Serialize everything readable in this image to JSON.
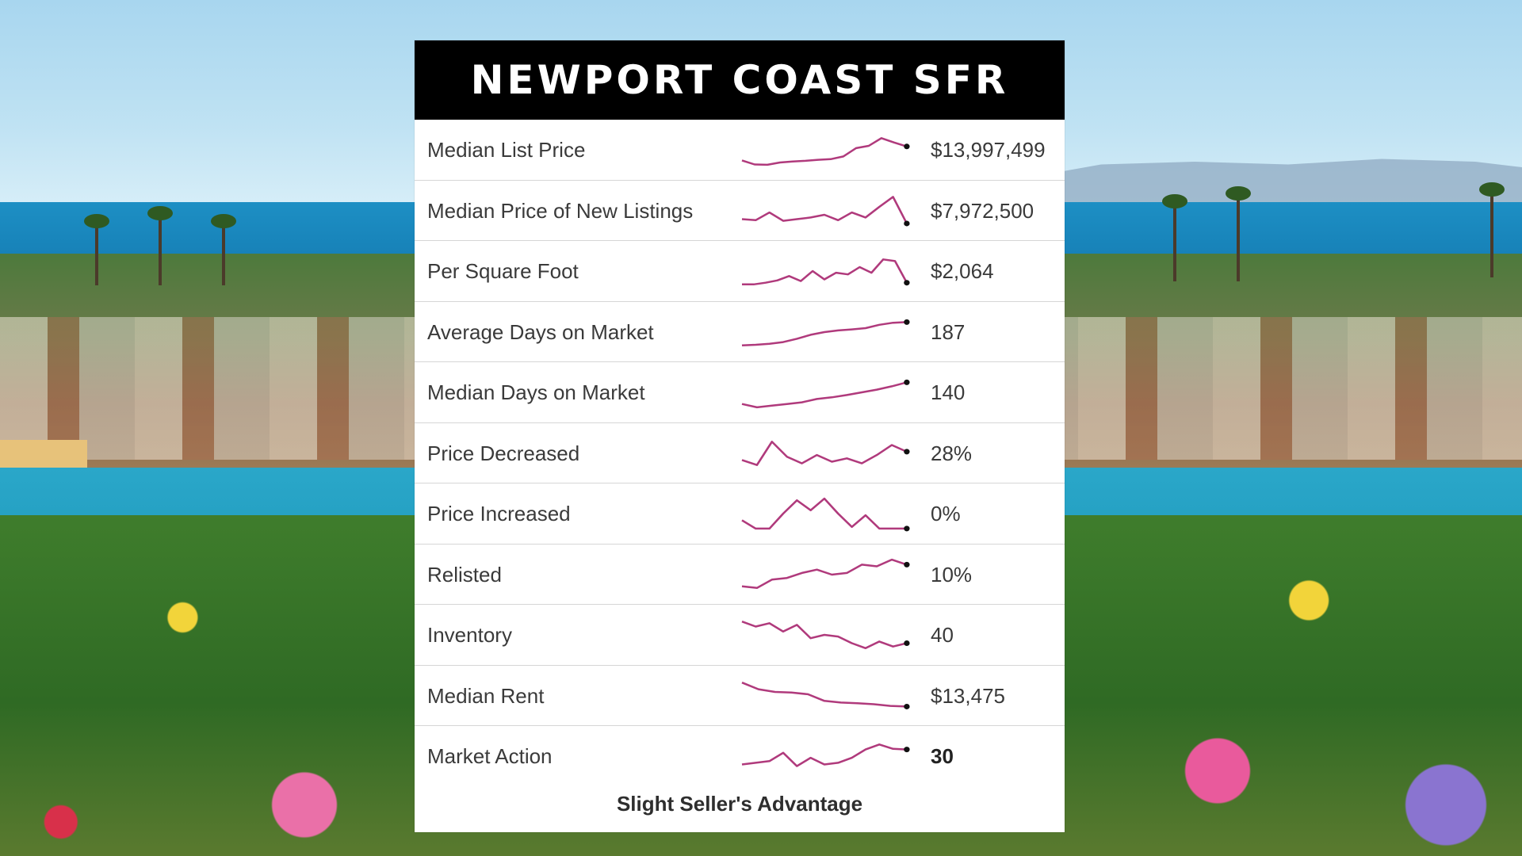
{
  "title": "NEWPORT COAST SFR",
  "spark_color": "#b03a7c",
  "rows": [
    {
      "label": "Median List Price",
      "value": "$13,997,499",
      "bold": false,
      "trend": [
        0.18,
        0.06,
        0.05,
        0.12,
        0.15,
        0.17,
        0.2,
        0.22,
        0.3,
        0.55,
        0.62,
        0.85,
        0.72,
        0.6
      ]
    },
    {
      "label": "Median Price of New Listings",
      "value": "$7,972,500",
      "bold": false,
      "trend": [
        0.25,
        0.22,
        0.45,
        0.2,
        0.25,
        0.3,
        0.38,
        0.22,
        0.45,
        0.3,
        0.62,
        0.92,
        0.12
      ]
    },
    {
      "label": "Per Square Foot",
      "value": "$2,064",
      "bold": false,
      "trend": [
        0.1,
        0.1,
        0.15,
        0.22,
        0.35,
        0.2,
        0.5,
        0.25,
        0.45,
        0.4,
        0.62,
        0.45,
        0.85,
        0.8,
        0.15
      ]
    },
    {
      "label": "Average Days on Market",
      "value": "187",
      "bold": false,
      "trend": [
        0.1,
        0.12,
        0.15,
        0.2,
        0.3,
        0.42,
        0.5,
        0.55,
        0.58,
        0.62,
        0.72,
        0.78,
        0.8
      ]
    },
    {
      "label": "Median Days on Market",
      "value": "140",
      "bold": false,
      "trend": [
        0.15,
        0.05,
        0.1,
        0.15,
        0.2,
        0.3,
        0.35,
        0.42,
        0.5,
        0.58,
        0.68,
        0.8
      ]
    },
    {
      "label": "Price Decreased",
      "value": "28%",
      "bold": false,
      "trend": [
        0.3,
        0.15,
        0.85,
        0.4,
        0.2,
        0.45,
        0.25,
        0.35,
        0.2,
        0.45,
        0.75,
        0.55
      ]
    },
    {
      "label": "Price Increased",
      "value": "0%",
      "bold": false,
      "trend": [
        0.3,
        0.05,
        0.05,
        0.5,
        0.9,
        0.6,
        0.95,
        0.5,
        0.1,
        0.45,
        0.05,
        0.05,
        0.05
      ]
    },
    {
      "label": "Relisted",
      "value": "10%",
      "bold": false,
      "trend": [
        0.15,
        0.1,
        0.35,
        0.4,
        0.55,
        0.65,
        0.5,
        0.55,
        0.8,
        0.75,
        0.95,
        0.8
      ]
    },
    {
      "label": "Inventory",
      "value": "40",
      "bold": false,
      "trend": [
        0.9,
        0.75,
        0.85,
        0.6,
        0.8,
        0.4,
        0.5,
        0.45,
        0.25,
        0.1,
        0.3,
        0.15,
        0.25
      ]
    },
    {
      "label": "Median Rent",
      "value": "$13,475",
      "bold": false,
      "trend": [
        0.9,
        0.7,
        0.62,
        0.6,
        0.55,
        0.35,
        0.3,
        0.28,
        0.25,
        0.2,
        0.18
      ]
    },
    {
      "label": "Market Action",
      "value": "30",
      "bold": true,
      "trend": [
        0.25,
        0.3,
        0.35,
        0.6,
        0.2,
        0.45,
        0.25,
        0.3,
        0.45,
        0.7,
        0.85,
        0.72,
        0.7
      ]
    }
  ],
  "footer": "Slight Seller's Advantage"
}
